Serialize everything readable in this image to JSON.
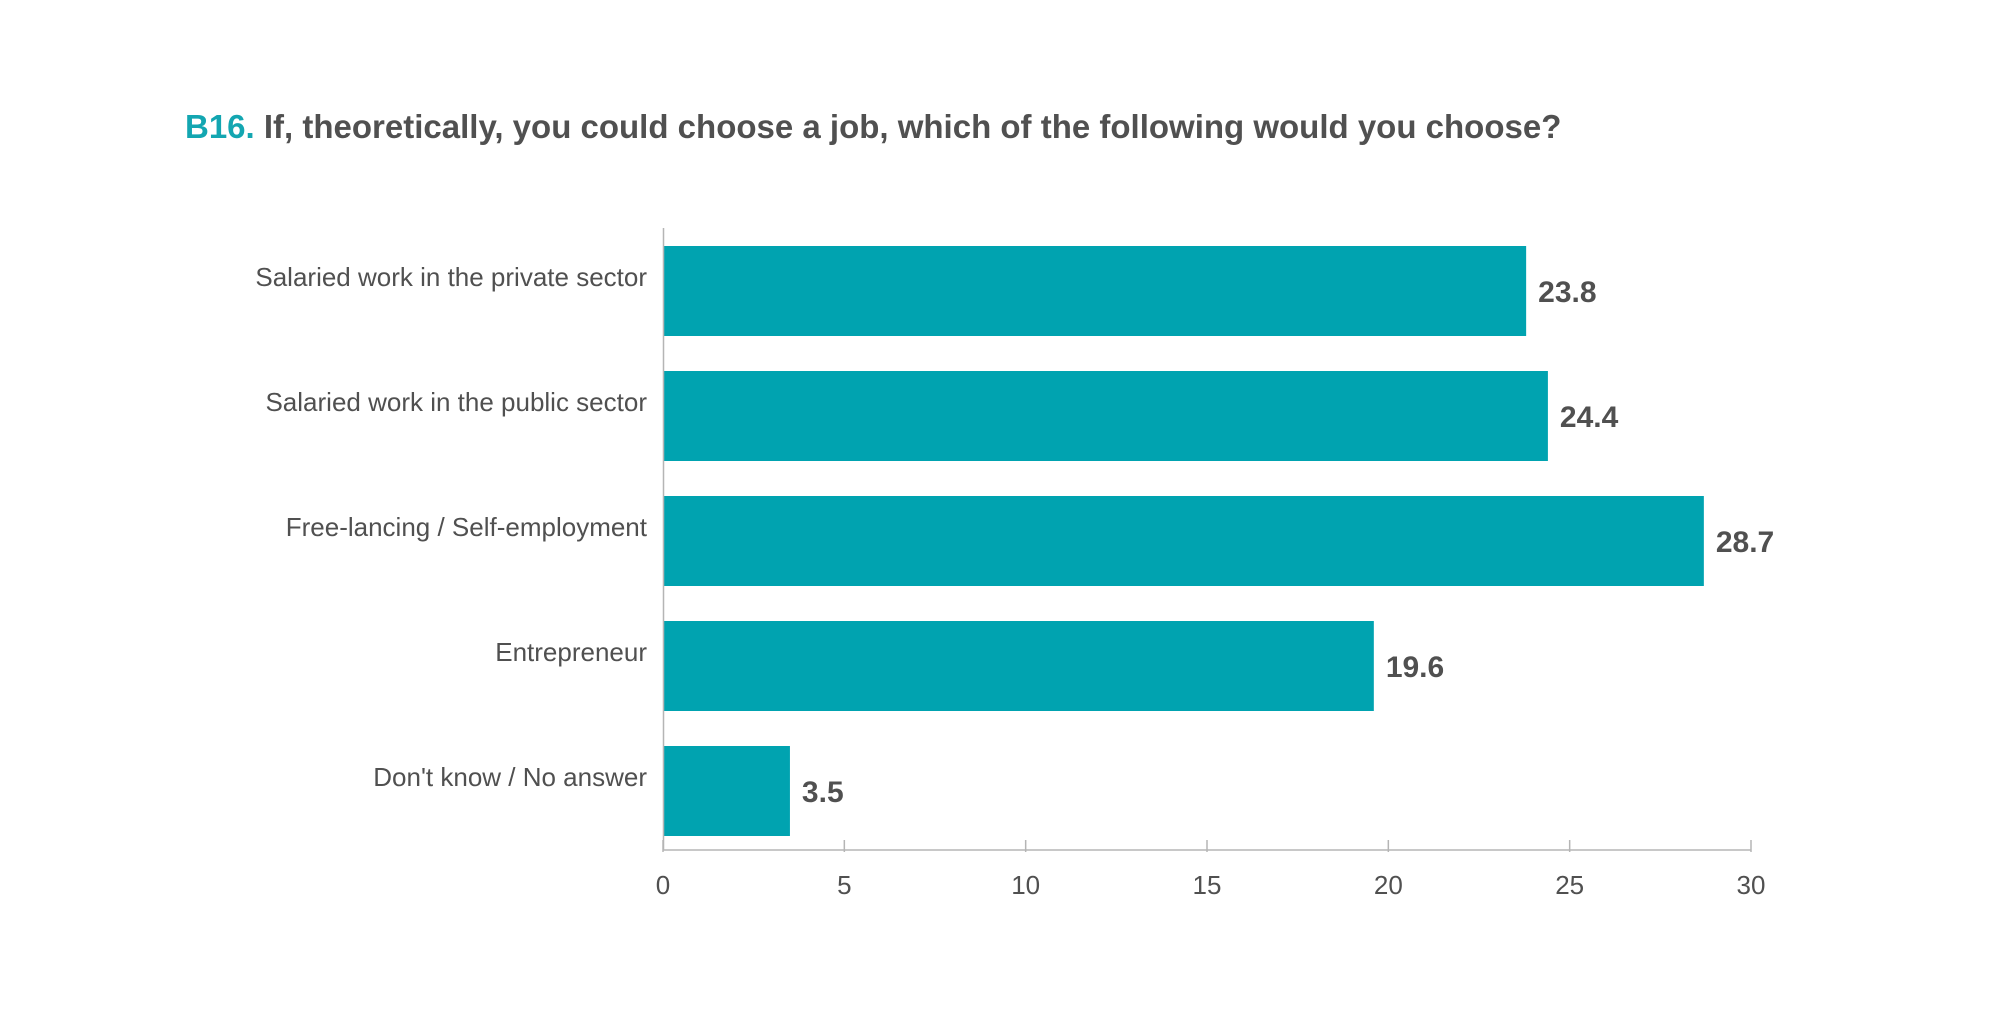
{
  "title": {
    "prefix": "B16.",
    "text": "If, theoretically, you could choose a job, which of the following would you choose?"
  },
  "colors": {
    "bar": "#00a3b0",
    "prefix": "#13a6b1",
    "text": "#505050",
    "axis": "#b5b5b5"
  },
  "chart_data": {
    "type": "bar",
    "orientation": "horizontal",
    "categories": [
      "Salaried work in the private sector",
      "Salaried work in the public sector",
      "Free-lancing  / Self-employment",
      "Entrepreneur",
      "Don't know / No answer"
    ],
    "values": [
      23.8,
      24.4,
      28.7,
      19.6,
      3.5
    ],
    "value_labels": [
      "23.8",
      "24.4",
      "28.7",
      "19.6",
      "3.5"
    ],
    "xlim": [
      0,
      30
    ],
    "xticks": [
      0,
      5,
      10,
      15,
      20,
      25,
      30
    ],
    "xtick_labels": [
      "0",
      "5",
      "10",
      "15",
      "20",
      "25",
      "30"
    ],
    "xlabel": "",
    "ylabel": "",
    "grid": false,
    "legend": "none"
  }
}
